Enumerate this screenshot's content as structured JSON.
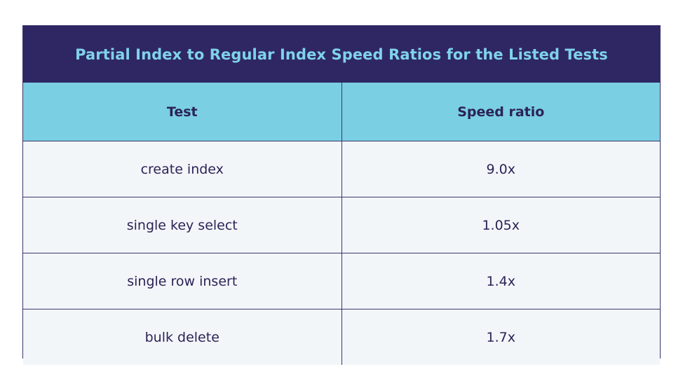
{
  "table": {
    "title": "Partial Index to Regular Index Speed Ratios for the Listed Tests",
    "headers": [
      "Test",
      "Speed ratio"
    ],
    "rows": [
      [
        "create index",
        "9.0x"
      ],
      [
        "single key select",
        "1.05x"
      ],
      [
        "single row insert",
        "1.4x"
      ],
      [
        "bulk delete",
        "1.7x"
      ]
    ]
  },
  "colors": {
    "title_background": "#2f2763",
    "title_text": "#7fd3ea",
    "header_background": "#7bcfe3",
    "cell_background": "#f3f6f9",
    "border": "#3b3570",
    "text": "#2b2357"
  }
}
